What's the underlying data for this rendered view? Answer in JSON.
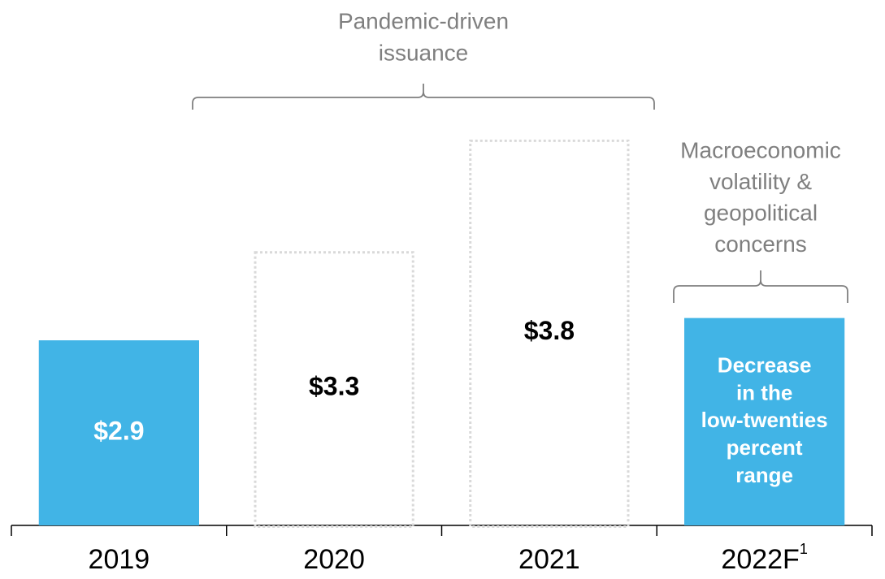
{
  "chart_data": {
    "type": "bar",
    "categories": [
      "2019",
      "2020",
      "2021",
      "2022F"
    ],
    "category_footnotes": [
      null,
      null,
      null,
      "1"
    ],
    "values": [
      2.9,
      3.3,
      3.8,
      3.0
    ],
    "value_labels": [
      "$2.9",
      "$3.3",
      "$3.8",
      null
    ],
    "bar_styles": [
      "solid",
      "dotted",
      "dotted",
      "solid"
    ],
    "colors": [
      "#41b4e6",
      "#d9d9d9",
      "#d9d9d9",
      "#41b4e6"
    ],
    "bar_text": [
      null,
      null,
      null,
      [
        "Decrease",
        "in the",
        "low-twenties",
        "percent",
        "range"
      ]
    ],
    "annotations": [
      {
        "lines": [
          "Pandemic-driven",
          "issuance"
        ]
      },
      {
        "lines": [
          "Macroeconomic",
          "volatility &",
          "geopolitical",
          "concerns"
        ]
      }
    ],
    "ylim": [
      2.07,
      4.0
    ]
  }
}
